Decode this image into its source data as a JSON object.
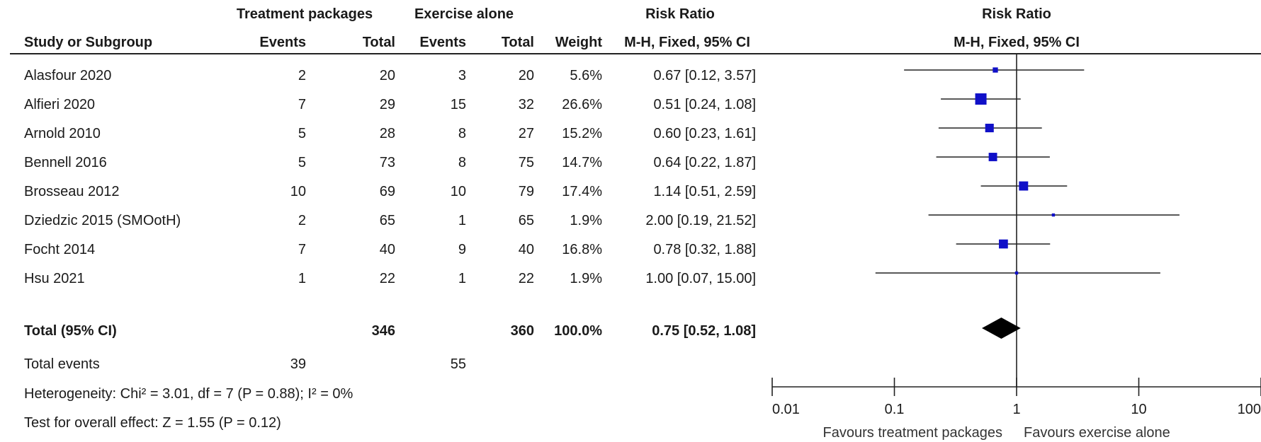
{
  "headers": {
    "group1": "Treatment packages",
    "group2": "Exercise alone",
    "rr_left": "Risk Ratio",
    "rr_right": "Risk Ratio",
    "study": "Study or Subgroup",
    "events1": "Events",
    "total1": "Total",
    "events2": "Events",
    "total2": "Total",
    "weight": "Weight",
    "method_left": "M-H, Fixed, 95% CI",
    "method_right": "M-H, Fixed, 95% CI"
  },
  "studies": [
    {
      "name": "Alasfour 2020",
      "e1": "2",
      "t1": "20",
      "e2": "3",
      "t2": "20",
      "weight": "5.6%",
      "ci": "0.67 [0.12, 3.57]"
    },
    {
      "name": "Alfieri 2020",
      "e1": "7",
      "t1": "29",
      "e2": "15",
      "t2": "32",
      "weight": "26.6%",
      "ci": "0.51 [0.24, 1.08]"
    },
    {
      "name": "Arnold 2010",
      "e1": "5",
      "t1": "28",
      "e2": "8",
      "t2": "27",
      "weight": "15.2%",
      "ci": "0.60 [0.23, 1.61]"
    },
    {
      "name": "Bennell 2016",
      "e1": "5",
      "t1": "73",
      "e2": "8",
      "t2": "75",
      "weight": "14.7%",
      "ci": "0.64 [0.22, 1.87]"
    },
    {
      "name": "Brosseau 2012",
      "e1": "10",
      "t1": "69",
      "e2": "10",
      "t2": "79",
      "weight": "17.4%",
      "ci": "1.14 [0.51, 2.59]"
    },
    {
      "name": "Dziedzic 2015 (SMOotH)",
      "e1": "2",
      "t1": "65",
      "e2": "1",
      "t2": "65",
      "weight": "1.9%",
      "ci": "2.00 [0.19, 21.52]"
    },
    {
      "name": "Focht 2014",
      "e1": "7",
      "t1": "40",
      "e2": "9",
      "t2": "40",
      "weight": "16.8%",
      "ci": "0.78 [0.32, 1.88]"
    },
    {
      "name": "Hsu 2021",
      "e1": "1",
      "t1": "22",
      "e2": "1",
      "t2": "22",
      "weight": "1.9%",
      "ci": "1.00 [0.07, 15.00]"
    }
  ],
  "total": {
    "label": "Total (95% CI)",
    "t1": "346",
    "t2": "360",
    "weight": "100.0%",
    "ci": "0.75 [0.52, 1.08]"
  },
  "events": {
    "label": "Total events",
    "e1": "39",
    "e2": "55"
  },
  "heterogeneity": "Heterogeneity: Chi² = 3.01, df = 7 (P = 0.88); I² = 0%",
  "overall": "Test for overall effect: Z = 1.55 (P = 0.12)",
  "axis": {
    "ticks": [
      "0.01",
      "0.1",
      "1",
      "10",
      "100"
    ],
    "favours_left": "Favours treatment packages",
    "favours_right": "Favours exercise alone"
  },
  "colors": {
    "marker": "#1010c8",
    "diamond": "#000000",
    "line": "#222222"
  },
  "chart_data": {
    "type": "forest",
    "scale": "log",
    "xlim": [
      0.01,
      100
    ],
    "null_line": 1,
    "studies": [
      {
        "name": "Alasfour 2020",
        "rr": 0.67,
        "lower": 0.12,
        "upper": 3.57,
        "weight": 5.6
      },
      {
        "name": "Alfieri 2020",
        "rr": 0.51,
        "lower": 0.24,
        "upper": 1.08,
        "weight": 26.6
      },
      {
        "name": "Arnold 2010",
        "rr": 0.6,
        "lower": 0.23,
        "upper": 1.61,
        "weight": 15.2
      },
      {
        "name": "Bennell 2016",
        "rr": 0.64,
        "lower": 0.22,
        "upper": 1.87,
        "weight": 14.7
      },
      {
        "name": "Brosseau 2012",
        "rr": 1.14,
        "lower": 0.51,
        "upper": 2.59,
        "weight": 17.4
      },
      {
        "name": "Dziedzic 2015 (SMOotH)",
        "rr": 2.0,
        "lower": 0.19,
        "upper": 21.52,
        "weight": 1.9
      },
      {
        "name": "Focht 2014",
        "rr": 0.78,
        "lower": 0.32,
        "upper": 1.88,
        "weight": 16.8
      },
      {
        "name": "Hsu 2021",
        "rr": 1.0,
        "lower": 0.07,
        "upper": 15.0,
        "weight": 1.9
      }
    ],
    "pooled": {
      "rr": 0.75,
      "lower": 0.52,
      "upper": 1.08,
      "weight": 100.0
    }
  }
}
